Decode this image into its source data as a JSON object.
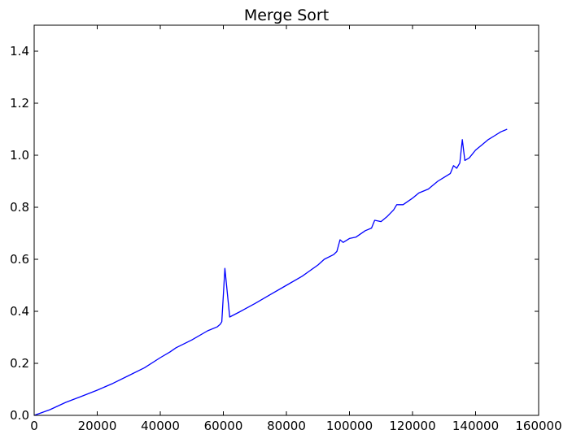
{
  "chart_data": {
    "type": "line",
    "title": "Merge Sort",
    "xlabel": "",
    "ylabel": "",
    "xlim": [
      0,
      160000
    ],
    "ylim": [
      0.0,
      1.5
    ],
    "x_ticks": [
      "0",
      "20000",
      "40000",
      "60000",
      "80000",
      "100000",
      "120000",
      "140000",
      "160000"
    ],
    "y_ticks": [
      "0.0",
      "0.2",
      "0.4",
      "0.6",
      "0.8",
      "1.0",
      "1.2",
      "1.4"
    ],
    "grid": false,
    "legend": "none",
    "line_color": "#0000ff",
    "series": [
      {
        "x": [
          0,
          5000,
          10000,
          15000,
          20000,
          25000,
          30000,
          35000,
          40000,
          43000,
          45000,
          50000,
          55000,
          58000,
          59000,
          59500,
          60500,
          62000,
          65000,
          70000,
          75000,
          80000,
          85000,
          90000,
          92000,
          95000,
          96000,
          97000,
          98000,
          100000,
          102000,
          105000,
          107000,
          108000,
          110000,
          112000,
          114000,
          115000,
          117000,
          120000,
          122000,
          125000,
          128000,
          130000,
          132000,
          133000,
          134000,
          135000,
          135800,
          136600,
          138000,
          140000,
          142000,
          144000,
          146000,
          148000,
          150000
        ],
        "y": [
          0.0,
          0.022,
          0.05,
          0.073,
          0.097,
          0.123,
          0.153,
          0.183,
          0.222,
          0.243,
          0.26,
          0.29,
          0.325,
          0.34,
          0.35,
          0.36,
          0.565,
          0.378,
          0.397,
          0.43,
          0.465,
          0.5,
          0.535,
          0.578,
          0.6,
          0.618,
          0.63,
          0.675,
          0.665,
          0.68,
          0.685,
          0.71,
          0.72,
          0.75,
          0.745,
          0.765,
          0.79,
          0.81,
          0.81,
          0.835,
          0.855,
          0.87,
          0.9,
          0.915,
          0.93,
          0.96,
          0.95,
          0.97,
          1.06,
          0.98,
          0.99,
          1.02,
          1.04,
          1.06,
          1.075,
          1.09,
          1.1
        ]
      }
    ]
  }
}
